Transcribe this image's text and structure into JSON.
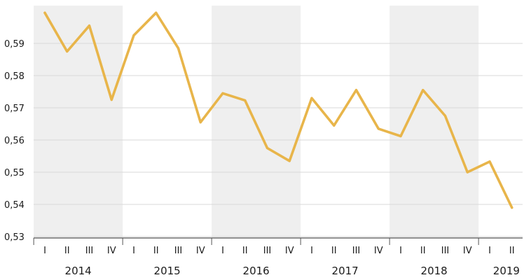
{
  "chart_data": {
    "type": "line",
    "title": "",
    "xlabel": "",
    "ylabel": "",
    "ylim": [
      0.528,
      0.6
    ],
    "yticks": [
      {
        "value": 0.53,
        "label": "0,53"
      },
      {
        "value": 0.54,
        "label": "0,54"
      },
      {
        "value": 0.55,
        "label": "0,55"
      },
      {
        "value": 0.56,
        "label": "0,56"
      },
      {
        "value": 0.57,
        "label": "0,57"
      },
      {
        "value": 0.58,
        "label": "0,58"
      },
      {
        "value": 0.59,
        "label": "0,59"
      }
    ],
    "grid": true,
    "legend": "none",
    "years": [
      "2014",
      "2015",
      "2016",
      "2017",
      "2018",
      "2019"
    ],
    "quarters": [
      "I",
      "II",
      "III",
      "IV"
    ],
    "x": [
      "2014 I",
      "2014 II",
      "2014 III",
      "2014 IV",
      "2015 I",
      "2015 II",
      "2015 III",
      "2015 IV",
      "2016 I",
      "2016 II",
      "2016 III",
      "2016 IV",
      "2017 I",
      "2017 II",
      "2017 III",
      "2017 IV",
      "2018 I",
      "2018 II",
      "2018 III",
      "2018 IV",
      "2019 I",
      "2019 II"
    ],
    "series": [
      {
        "values": [
          0.5995,
          0.5875,
          0.5955,
          0.5725,
          0.5925,
          0.5995,
          0.5885,
          0.5655,
          0.5745,
          0.5723,
          0.5575,
          0.5535,
          0.573,
          0.5645,
          0.5755,
          0.5635,
          0.5612,
          0.5755,
          0.5675,
          0.55,
          0.5533,
          0.539
        ]
      }
    ],
    "colors": {
      "line": "#e8b54a",
      "band": "#efefef",
      "grid": "#d8d8d8",
      "axis": "#555555",
      "text": "#1a1a1a"
    }
  }
}
